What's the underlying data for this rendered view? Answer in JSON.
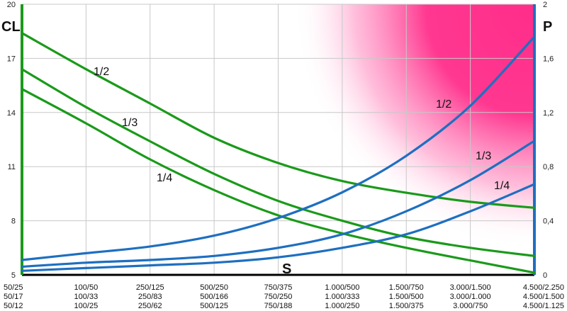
{
  "chart_data": {
    "type": "line",
    "xlabel": "S",
    "ylabel_left": "CL",
    "ylabel_right": "P",
    "y_left": {
      "lim": [
        5,
        20
      ],
      "ticks": [
        "5",
        "8",
        "11",
        "14",
        "17",
        "20"
      ]
    },
    "y_right": {
      "lim": [
        0,
        2
      ],
      "ticks": [
        "0",
        "0,4",
        "0,8",
        "1,2",
        "1,6",
        "2"
      ]
    },
    "categories": [
      [
        "50/25",
        "50/17",
        "50/12"
      ],
      [
        "100/50",
        "100/33",
        "100/25"
      ],
      [
        "250/125",
        "250/83",
        "250/62"
      ],
      [
        "500/250",
        "500/166",
        "500/125"
      ],
      [
        "750/375",
        "750/250",
        "750/188"
      ],
      [
        "1.000/500",
        "1.000/333",
        "1.000/250"
      ],
      [
        "1.500/750",
        "1.500/500",
        "1.500/375"
      ],
      [
        "3.000/1.500",
        "3.000/1.000",
        "3.000/750"
      ],
      [
        "4.500/2.250",
        "4.500/1.500",
        "4.500/1.125"
      ]
    ],
    "series": [
      {
        "name": "1/2",
        "axis": "left",
        "color": "#1a9a1a",
        "values": [
          18.4,
          16.4,
          14.5,
          12.6,
          11.2,
          10.2,
          9.55,
          9.05,
          8.72
        ]
      },
      {
        "name": "1/3",
        "axis": "left",
        "color": "#1a9a1a",
        "values": [
          16.4,
          14.3,
          12.4,
          10.6,
          9.1,
          8.0,
          7.1,
          6.5,
          6.05
        ]
      },
      {
        "name": "1/4",
        "axis": "left",
        "color": "#1a9a1a",
        "values": [
          15.3,
          13.4,
          11.4,
          9.7,
          8.3,
          7.3,
          6.5,
          5.8,
          5.12
        ]
      },
      {
        "name": "1/2",
        "axis": "right",
        "color": "#1e6fc0",
        "values": [
          0.11,
          0.16,
          0.21,
          0.29,
          0.42,
          0.61,
          0.88,
          1.25,
          1.76
        ]
      },
      {
        "name": "1/3",
        "axis": "right",
        "color": "#1e6fc0",
        "values": [
          0.06,
          0.09,
          0.11,
          0.14,
          0.2,
          0.3,
          0.47,
          0.7,
          0.99
        ]
      },
      {
        "name": "1/4",
        "axis": "right",
        "color": "#1e6fc0",
        "values": [
          0.03,
          0.05,
          0.07,
          0.09,
          0.13,
          0.2,
          0.3,
          0.47,
          0.67
        ]
      }
    ],
    "curve_labels": [
      "1/2",
      "1/3",
      "1/4",
      "1/2",
      "1/3",
      "1/4"
    ],
    "grid": true,
    "highlight": {
      "region": "top-right",
      "color": "#ff2d8a"
    }
  }
}
